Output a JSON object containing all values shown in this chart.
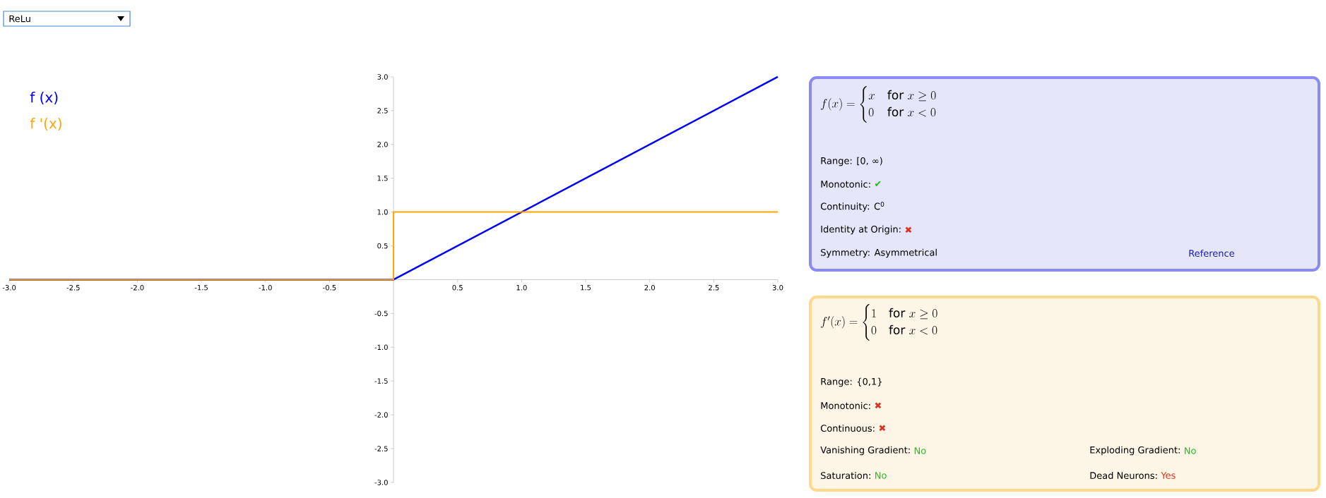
{
  "chart_data": [
    {
      "type": "line",
      "annotations": [
        "ReLu"
      ],
      "xlim": [
        -3,
        3
      ],
      "ylim": [
        -3,
        3
      ],
      "xticks": [
        {
          "value": -3,
          "label": "-3.0"
        },
        {
          "value": -2.5,
          "label": "-2.5"
        },
        {
          "value": -2,
          "label": "-2.0"
        },
        {
          "value": -1.5,
          "label": "-1.5"
        },
        {
          "value": -1,
          "label": "-1.0"
        },
        {
          "value": -0.5,
          "label": "-0.5"
        },
        {
          "value": 0.5,
          "label": "0.5"
        },
        {
          "value": 1,
          "label": "1.0"
        },
        {
          "value": 1.5,
          "label": "1.5"
        },
        {
          "value": 2,
          "label": "2.0"
        },
        {
          "value": 2.5,
          "label": "2.5"
        },
        {
          "value": 3,
          "label": "3.0"
        }
      ],
      "yticks": [
        {
          "value": -3,
          "label": "-3.0"
        },
        {
          "value": -2.5,
          "label": "-2.5"
        },
        {
          "value": -2,
          "label": "-2.0"
        },
        {
          "value": -1.5,
          "label": "-1.5"
        },
        {
          "value": -1,
          "label": "-1.0"
        },
        {
          "value": -0.5,
          "label": "-0.5"
        },
        {
          "value": 0.5,
          "label": "0.5"
        },
        {
          "value": 1,
          "label": "1.0"
        },
        {
          "value": 1.5,
          "label": "1.5"
        },
        {
          "value": 2,
          "label": "2.0"
        },
        {
          "value": 2.5,
          "label": "2.5"
        },
        {
          "value": 3,
          "label": "3.0"
        }
      ],
      "legend": "top left",
      "marker": "none",
      "line_style": "solid",
      "series": [
        {
          "name": "f (x)",
          "color": "#0000ff",
          "x": [
            -3,
            0,
            3
          ],
          "values": [
            0,
            0,
            3
          ]
        },
        {
          "name": "f '(x)",
          "color": "#ffa500",
          "x": [
            -3,
            0,
            0,
            3
          ],
          "values": [
            0,
            0,
            1,
            1
          ]
        }
      ]
    },
    {
      "type": "other",
      "title": "f(x) = \\begin{cases} x & \\text{for } x \\geq 0 \\\\ 0 & \\text{for } x < 0 \\end{cases}",
      "annotations": [
        "Range: [0, ∞)",
        "Monotonic:",
        "✔",
        "Continuity: C$^{0}$",
        "Identity at Origin:",
        "✖",
        "Symmetry: Asymmetrical",
        "Reference"
      ]
    },
    {
      "type": "other",
      "title": "f'(x) = \\begin{cases} 1 & \\text{for } x \\geq 0 \\\\ 0 & \\text{for } x < 0 \\end{cases}",
      "annotations": [
        "Range: {0,1}",
        "Monotonic:",
        "✖",
        "Continuous:",
        "✖",
        "Vanishing Gradient:",
        "No",
        "Exploding Gradient:",
        "No",
        "Saturation:",
        "No",
        "Dead Neurons:",
        "Yes"
      ]
    }
  ]
}
